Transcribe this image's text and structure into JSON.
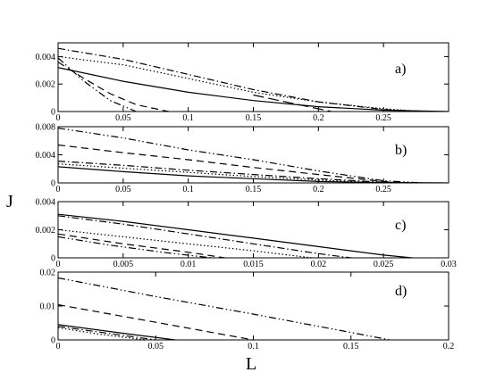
{
  "figure": {
    "ylabel": "J",
    "xlabel": "L"
  },
  "chart_data": [
    {
      "type": "line",
      "panel_label": "a)",
      "xlim": [
        0,
        0.3
      ],
      "ylim": [
        0,
        0.005
      ],
      "x_ticks": [
        0,
        0.05,
        0.1,
        0.15,
        0.2,
        0.25
      ],
      "x_tick_labels": [
        "0",
        "0.05",
        "0.1",
        "0.15",
        "0.2",
        "0.25"
      ],
      "y_ticks": [
        0,
        0.002,
        0.004
      ],
      "y_tick_labels": [
        "0",
        "0.002",
        "0.004"
      ],
      "grid": false,
      "series": [
        {
          "style": "solid",
          "x": [
            0,
            0.05,
            0.1,
            0.15,
            0.2,
            0.25,
            0.3
          ],
          "y": [
            0.0032,
            0.0022,
            0.0014,
            0.0008,
            0.00035,
            0.0001,
            0
          ]
        },
        {
          "style": "dotted",
          "x": [
            0,
            0.05,
            0.1,
            0.15,
            0.2,
            0.25,
            0.28
          ],
          "y": [
            0.004,
            0.0034,
            0.0024,
            0.0014,
            0.0007,
            0.0002,
            0
          ]
        },
        {
          "style": "dash-dot",
          "x": [
            0,
            0.05,
            0.1,
            0.15,
            0.2,
            0.25,
            0.28
          ],
          "y": [
            0.0046,
            0.0038,
            0.0027,
            0.0016,
            0.0007,
            0.00015,
            0
          ]
        },
        {
          "style": "dashed",
          "x": [
            0,
            0.02,
            0.04,
            0.06,
            0.085
          ],
          "y": [
            0.0036,
            0.0024,
            0.0013,
            0.0005,
            0
          ]
        },
        {
          "style": "dash-dot-dot",
          "x": [
            0,
            0.02,
            0.04,
            0.06
          ],
          "y": [
            0.0039,
            0.0022,
            0.0008,
            0
          ]
        },
        {
          "style": "long-dash",
          "x": [
            0.15,
            0.18,
            0.21
          ],
          "y": [
            0.0012,
            0.0006,
            0
          ]
        }
      ]
    },
    {
      "type": "line",
      "panel_label": "b)",
      "xlim": [
        0,
        0.3
      ],
      "ylim": [
        0,
        0.008
      ],
      "x_ticks": [
        0,
        0.05,
        0.1,
        0.15,
        0.2,
        0.25
      ],
      "x_tick_labels": [
        "0",
        "0.05",
        "0.1",
        "0.15",
        "0.2",
        "0.25"
      ],
      "y_ticks": [
        0,
        0.004,
        0.008
      ],
      "y_tick_labels": [
        "0",
        "0.004",
        "0.008"
      ],
      "grid": false,
      "series": [
        {
          "style": "dash-dot-dot",
          "x": [
            0,
            0.05,
            0.1,
            0.15,
            0.2,
            0.25,
            0.28
          ],
          "y": [
            0.0078,
            0.0064,
            0.0047,
            0.0033,
            0.0017,
            0.0003,
            0
          ]
        },
        {
          "style": "dashed",
          "x": [
            0,
            0.05,
            0.1,
            0.15,
            0.2,
            0.25,
            0.27
          ],
          "y": [
            0.0054,
            0.0043,
            0.0033,
            0.0022,
            0.0012,
            0.0002,
            0
          ]
        },
        {
          "style": "dash-dot",
          "x": [
            0,
            0.05,
            0.1,
            0.15,
            0.2,
            0.25,
            0.27
          ],
          "y": [
            0.0031,
            0.0025,
            0.0018,
            0.0012,
            0.0006,
            0.0001,
            0
          ]
        },
        {
          "style": "dotted",
          "x": [
            0,
            0.05,
            0.1,
            0.15,
            0.2,
            0.25
          ],
          "y": [
            0.0027,
            0.0021,
            0.0015,
            0.0009,
            0.0004,
            0
          ]
        },
        {
          "style": "solid",
          "x": [
            0,
            0.05,
            0.1,
            0.15,
            0.2,
            0.25,
            0.3
          ],
          "y": [
            0.0023,
            0.0016,
            0.001,
            0.0006,
            0.0002,
            5e-05,
            0
          ]
        }
      ]
    },
    {
      "type": "line",
      "panel_label": "c)",
      "xlim": [
        0,
        0.03
      ],
      "ylim": [
        0,
        0.004
      ],
      "x_ticks": [
        0,
        0.005,
        0.01,
        0.015,
        0.02,
        0.025,
        0.03
      ],
      "x_tick_labels": [
        "0",
        "0.005",
        "0.01",
        "0.015",
        "0.02",
        "0.025",
        "0.03"
      ],
      "y_ticks": [
        0,
        0.002,
        0.004
      ],
      "y_tick_labels": [
        "0",
        "0.002",
        "0.004"
      ],
      "grid": false,
      "series": [
        {
          "style": "solid",
          "x": [
            0,
            0.005,
            0.01,
            0.015,
            0.02,
            0.025,
            0.0272
          ],
          "y": [
            0.0031,
            0.0026,
            0.002,
            0.0014,
            0.0008,
            0.0002,
            0
          ]
        },
        {
          "style": "dash-dot",
          "x": [
            0,
            0.005,
            0.01,
            0.015,
            0.02,
            0.0225
          ],
          "y": [
            0.003,
            0.0024,
            0.0017,
            0.001,
            0.0003,
            0
          ]
        },
        {
          "style": "dotted",
          "x": [
            0,
            0.005,
            0.01,
            0.015,
            0.0195
          ],
          "y": [
            0.002,
            0.0015,
            0.001,
            0.0005,
            0
          ]
        },
        {
          "style": "dashed",
          "x": [
            0,
            0.005,
            0.01,
            0.0128
          ],
          "y": [
            0.0017,
            0.001,
            0.0004,
            0
          ]
        },
        {
          "style": "dash-dot-dot",
          "x": [
            0,
            0.004,
            0.008,
            0.0118
          ],
          "y": [
            0.0015,
            0.0009,
            0.0004,
            0
          ]
        }
      ]
    },
    {
      "type": "line",
      "panel_label": "d)",
      "xlim": [
        0,
        0.2
      ],
      "ylim": [
        0,
        0.02
      ],
      "x_ticks": [
        0,
        0.05,
        0.1,
        0.15,
        0.2
      ],
      "x_tick_labels": [
        "0",
        "0.05",
        "0.1",
        "0.15",
        "0.2"
      ],
      "y_ticks": [
        0,
        0.01,
        0.02
      ],
      "y_tick_labels": [
        "0",
        "0.01",
        "0.02"
      ],
      "grid": false,
      "series": [
        {
          "style": "dash-dot-dot",
          "x": [
            0,
            0.05,
            0.1,
            0.15,
            0.17
          ],
          "y": [
            0.0183,
            0.0128,
            0.0076,
            0.0022,
            0
          ]
        },
        {
          "style": "dashed",
          "x": [
            0,
            0.05,
            0.1
          ],
          "y": [
            0.0104,
            0.0052,
            0
          ]
        },
        {
          "style": "solid",
          "x": [
            0,
            0.03,
            0.06
          ],
          "y": [
            0.0045,
            0.0022,
            0
          ]
        },
        {
          "style": "dash-dot",
          "x": [
            0,
            0.025,
            0.05
          ],
          "y": [
            0.004,
            0.002,
            0
          ]
        },
        {
          "style": "dotted",
          "x": [
            0,
            0.02,
            0.045
          ],
          "y": [
            0.0036,
            0.0018,
            0
          ]
        }
      ]
    }
  ]
}
